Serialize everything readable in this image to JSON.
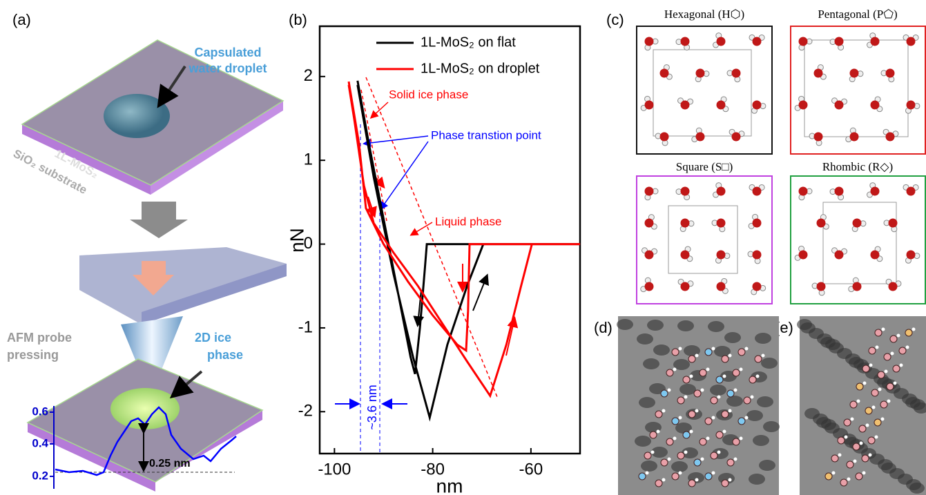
{
  "panel_labels": [
    "(a)",
    "(b)",
    "(c)",
    "(d)",
    "(e)"
  ],
  "schematic": {
    "droplet_label": [
      "Capsulated",
      "water droplet"
    ],
    "layer": "1L-MoS₂",
    "substrate": "SiO₂ substrate",
    "probe_label": [
      "AFM probe",
      "pressing"
    ],
    "ice_label": [
      "2D ice",
      "phase"
    ],
    "height": "0.25 nm",
    "profile_ticks": [
      "0.2",
      "0.4",
      "0.6"
    ]
  },
  "chart_data": {
    "type": "line",
    "xlabel": "nm",
    "ylabel": "nN",
    "xlim": [
      -103,
      -50
    ],
    "xticks": [
      -100,
      -80,
      -60
    ],
    "ylim": [
      -2.5,
      2.6
    ],
    "yticks": [
      -2,
      -1,
      0,
      1,
      2
    ],
    "legend": "top-left",
    "series": [
      {
        "name": "1L-MoS₂ on flat",
        "color": "#000000",
        "x": [
          -95.3,
          -93,
          -90,
          -87,
          -84.5,
          -83.6,
          -82.6,
          -81.6,
          -81.2,
          -78,
          -74,
          -70,
          -65,
          -60,
          -55,
          -50,
          null,
          -95.3,
          -92,
          -88,
          -84,
          -80.6,
          -77,
          -73,
          -69.7,
          -65,
          -60,
          -55,
          -50
        ],
        "values": [
          1.95,
          1.2,
          0.3,
          -0.6,
          -1.35,
          -1.55,
          -1.0,
          -0.3,
          0,
          0,
          0,
          0,
          0,
          0,
          0,
          0,
          null,
          1.9,
          0.8,
          -0.35,
          -1.35,
          -2.07,
          -1.2,
          -0.5,
          0,
          0,
          0,
          0,
          0
        ]
      },
      {
        "name": "1L-MoS₂ on droplet",
        "color": "#ff0000",
        "x": [
          -97.1,
          -95,
          -93.6,
          -90,
          -85,
          -80,
          -75,
          -73.2,
          -72.8,
          -72.5,
          -65,
          -60,
          -55,
          -50,
          null,
          -97.1,
          -96,
          -94,
          -92,
          -88,
          -83,
          -78,
          -73,
          -68.3,
          -65,
          -62,
          -59.8,
          -55,
          -50
        ],
        "values": [
          1.94,
          1.2,
          0.43,
          0.0,
          -0.45,
          -0.85,
          -1.2,
          -1.27,
          -0.8,
          0,
          0,
          0,
          0,
          0,
          null,
          1.9,
          1.5,
          0.7,
          0.25,
          -0.1,
          -0.5,
          -0.95,
          -1.4,
          -1.81,
          -1.2,
          -0.5,
          0,
          0,
          0
        ]
      }
    ],
    "annotations": [
      "Solid ice phase",
      "Phase transtion point",
      "Liquid phase",
      "~3.6 nm"
    ]
  },
  "structures": [
    "Hexagonal (H⬡)",
    "Pentagonal (P⬠)",
    "Square (S□)",
    "Rhombic (R◇)"
  ]
}
